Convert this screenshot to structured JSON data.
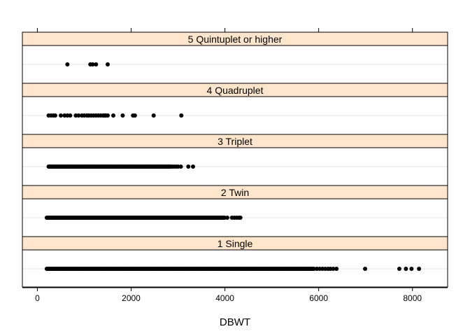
{
  "chart_data": {
    "type": "scatter",
    "xlabel": "DBWT",
    "ylabel": "",
    "xlim": [
      -320,
      8750
    ],
    "x_ticks": [
      0,
      2000,
      4000,
      6000,
      8000
    ],
    "x_tick_labels": [
      "0",
      "2000",
      "4000",
      "6000",
      "8000"
    ],
    "grid": false,
    "marker_color": "#000000",
    "strip_color": "#ffe5cc",
    "panels": [
      {
        "name": "5 Quintuplet or higher",
        "points": [
          640,
          1130,
          1180,
          1250,
          1500
        ]
      },
      {
        "name": "4 Quadruplet",
        "points": [
          240,
          290,
          340,
          380,
          500,
          580,
          640,
          700,
          820,
          880,
          950,
          1000,
          1060,
          1100,
          1150,
          1200,
          1250,
          1300,
          1350,
          1400,
          1430,
          1460,
          1500,
          1620,
          1820,
          2040,
          2080,
          2480,
          3070
        ]
      },
      {
        "name": "3 Triplet",
        "dense_ranges": [
          [
            240,
            2850
          ]
        ],
        "points": [
          2880,
          2920,
          2960,
          3000,
          3060,
          3220,
          3320
        ]
      },
      {
        "name": "2 Twin",
        "dense_ranges": [
          [
            200,
            4000
          ]
        ],
        "points": [
          4050,
          4150,
          4200,
          4250,
          4300,
          4330
        ]
      },
      {
        "name": "1 Single",
        "dense_ranges": [
          [
            200,
            5900
          ]
        ],
        "points": [
          5960,
          6020,
          6080,
          6140,
          6200,
          6250,
          6310,
          6380,
          6990,
          7720,
          7860,
          7980,
          8140
        ]
      }
    ]
  }
}
